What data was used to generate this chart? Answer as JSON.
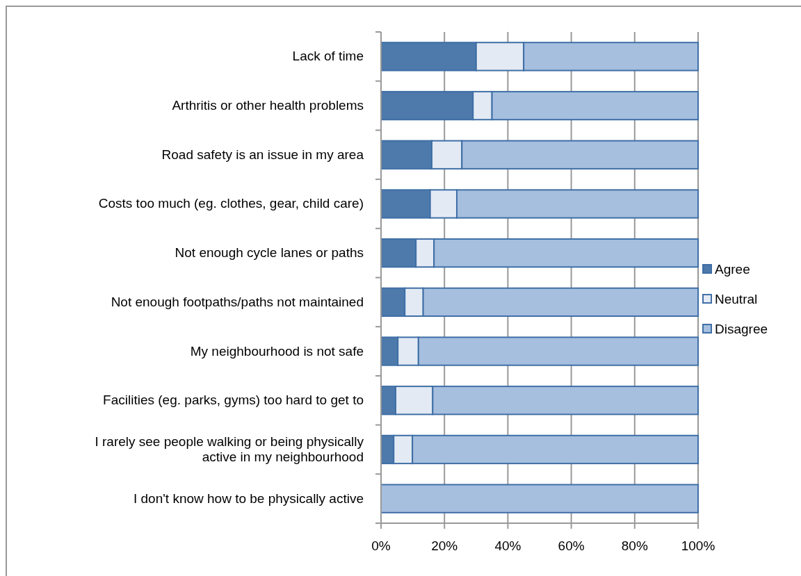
{
  "chart_data": {
    "type": "bar",
    "orientation": "horizontal",
    "stacked": true,
    "categories": [
      "Lack of time",
      "Arthritis or other health problems",
      "Road safety is an issue in my area",
      "Costs too much (eg. clothes, gear, child care)",
      "Not enough cycle lanes or paths",
      "Not enough footpaths/paths not maintained",
      "My neighbourhood is not safe",
      "Facilities (eg. parks, gyms) too hard to get to",
      "I rarely see people walking or being physically active in my neighbourhood",
      "I don't know how to be physically active"
    ],
    "series": [
      {
        "name": "Agree",
        "color": "#4e79ab",
        "values": [
          30,
          29,
          16,
          15.5,
          11,
          7.5,
          5.3,
          4.6,
          4,
          null
        ]
      },
      {
        "name": "Neutral",
        "color": "#e3eaf4",
        "values": [
          15,
          6,
          9.5,
          8.4,
          5.7,
          5.8,
          6.5,
          11.7,
          5.9,
          null
        ]
      },
      {
        "name": "Disagree",
        "color": "#a6bfdf",
        "values": [
          55,
          65,
          74.5,
          76.1,
          83.3,
          86.7,
          88.2,
          83.7,
          90.1,
          100
        ]
      }
    ],
    "xlim": [
      0,
      100
    ],
    "xticks": [
      {
        "value": 0,
        "label": "0%"
      },
      {
        "value": 20,
        "label": "20%"
      },
      {
        "value": 40,
        "label": "40%"
      },
      {
        "value": 60,
        "label": "60%"
      },
      {
        "value": 80,
        "label": "80%"
      },
      {
        "value": 100,
        "label": "100%"
      }
    ],
    "grid": "x",
    "legend": "right"
  }
}
